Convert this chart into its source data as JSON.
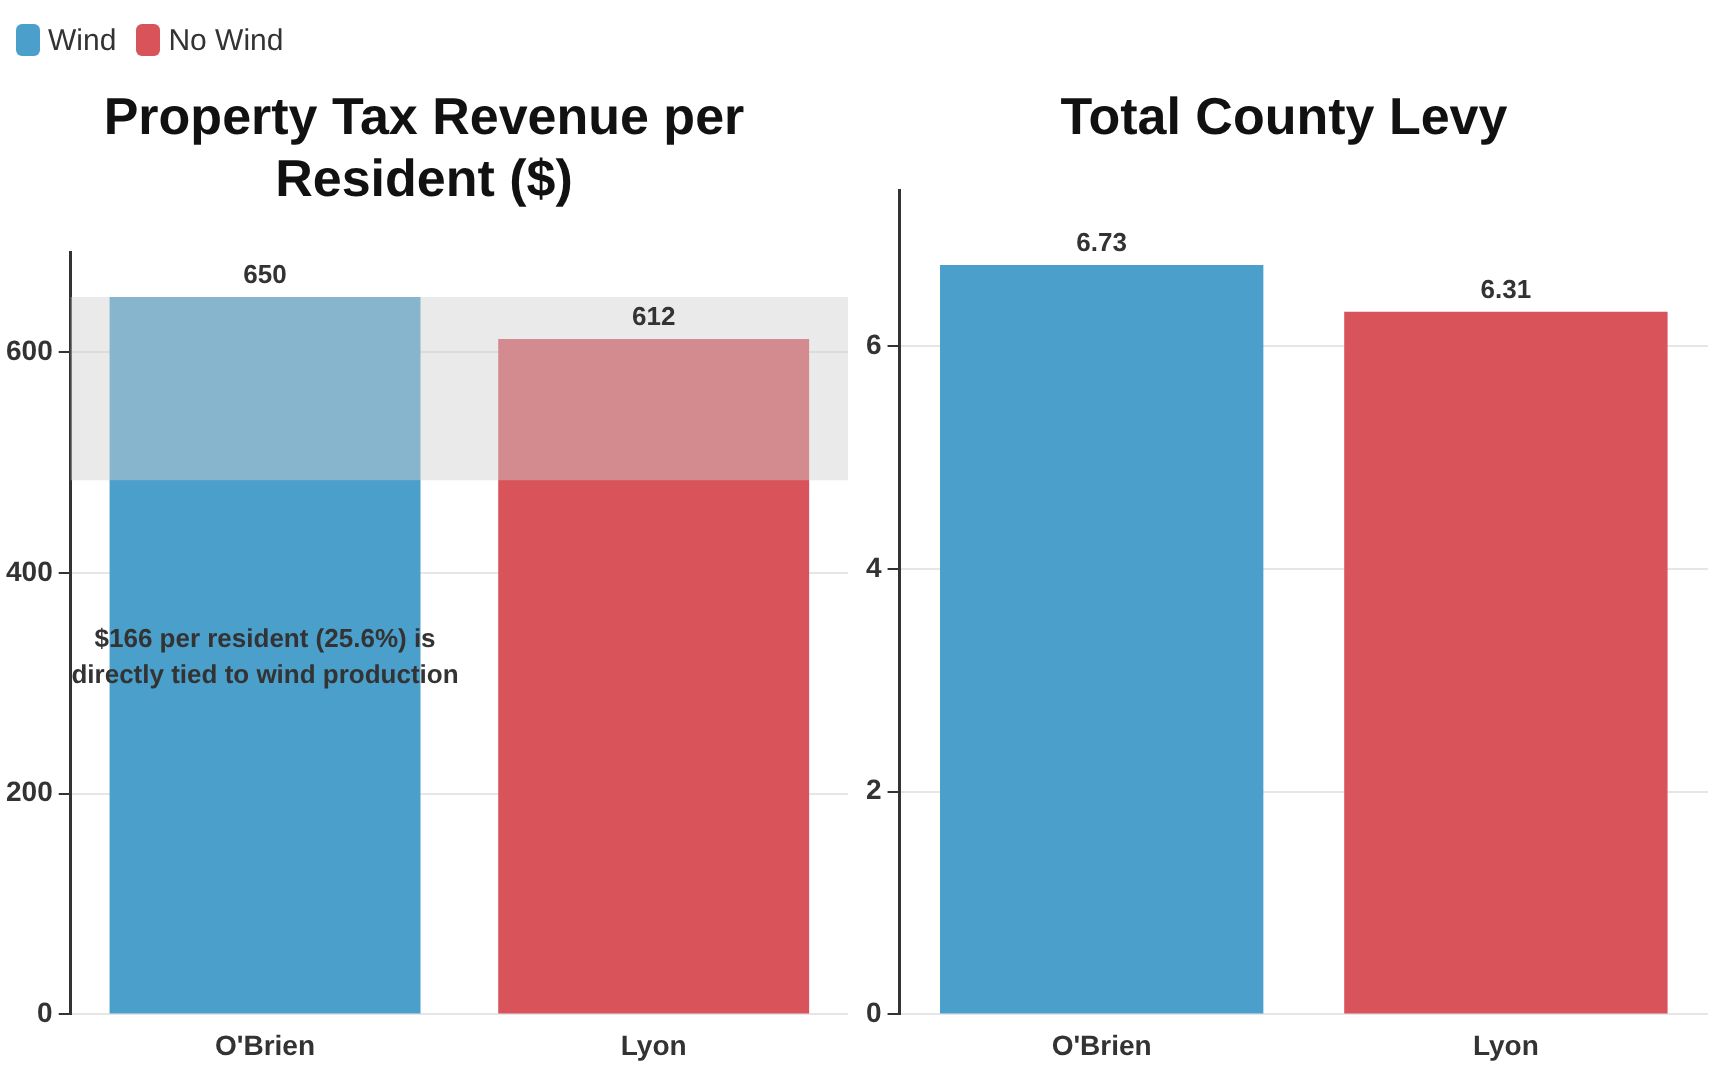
{
  "chart_data": [
    {
      "type": "bar",
      "title": "Property Tax Revenue per Resident ($)",
      "categories": [
        "O'Brien",
        "Lyon"
      ],
      "series": [
        {
          "name": "Wind",
          "color": "#4a9fcb",
          "values": [
            650,
            null
          ]
        },
        {
          "name": "No Wind",
          "color": "#d8535a",
          "values": [
            null,
            612
          ]
        }
      ],
      "ylim": [
        0,
        690
      ],
      "yticks": [
        0,
        200,
        400,
        600
      ],
      "grid": "y",
      "legend": "top left",
      "data_labels": true,
      "bands": [
        {
          "axis": "y",
          "from": 484,
          "to": 650,
          "color": "#d0d0d0"
        }
      ],
      "annotations": [
        "$166 per resident (25.6%) is directly tied to wind production"
      ]
    },
    {
      "type": "bar",
      "title": "Total County Levy",
      "categories": [
        "O'Brien",
        "Lyon"
      ],
      "series": [
        {
          "color": "#4a9fcb",
          "values": [
            6.73,
            null
          ]
        },
        {
          "color": "#d8535a",
          "values": [
            null,
            6.31
          ]
        }
      ],
      "ylim": [
        0,
        7.4
      ],
      "yticks": [
        0,
        2,
        4,
        6
      ],
      "grid": "y",
      "data_labels": true
    }
  ]
}
